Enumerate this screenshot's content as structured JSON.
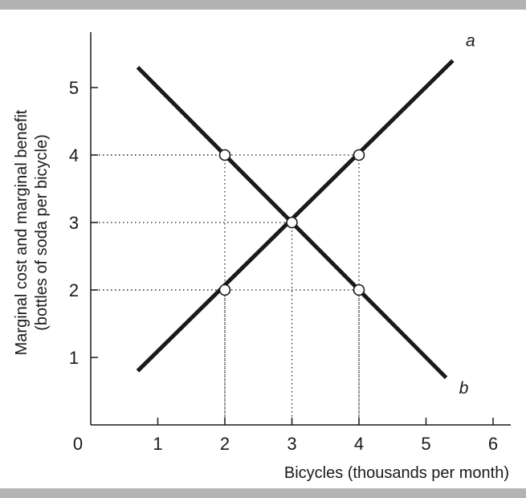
{
  "chart_data": {
    "type": "line",
    "xlabel": "Bicycles (thousands per month)",
    "ylabel_line1": "Marginal cost and marginal benefit",
    "ylabel_line2": "(bottles of soda per bicycle)",
    "origin_label": "0",
    "xlim": [
      0,
      6
    ],
    "ylim": [
      0,
      5.6
    ],
    "x_ticks": [
      1,
      2,
      3,
      4,
      5,
      6
    ],
    "y_ticks": [
      1,
      2,
      3,
      4,
      5
    ],
    "series": [
      {
        "name": "a",
        "points": [
          [
            0.7,
            0.8
          ],
          [
            5.4,
            5.4
          ]
        ]
      },
      {
        "name": "b",
        "points": [
          [
            0.7,
            5.3
          ],
          [
            5.3,
            0.7
          ]
        ]
      }
    ],
    "highlight_points": [
      [
        2,
        4
      ],
      [
        4,
        4
      ],
      [
        3,
        3
      ],
      [
        2,
        2
      ],
      [
        4,
        2
      ]
    ],
    "grid": "dotted reference lines to highlighted points",
    "colors": {
      "line": "#1a1a1a",
      "band": "#b3b3b3",
      "marker_fill": "#ffffff"
    }
  }
}
